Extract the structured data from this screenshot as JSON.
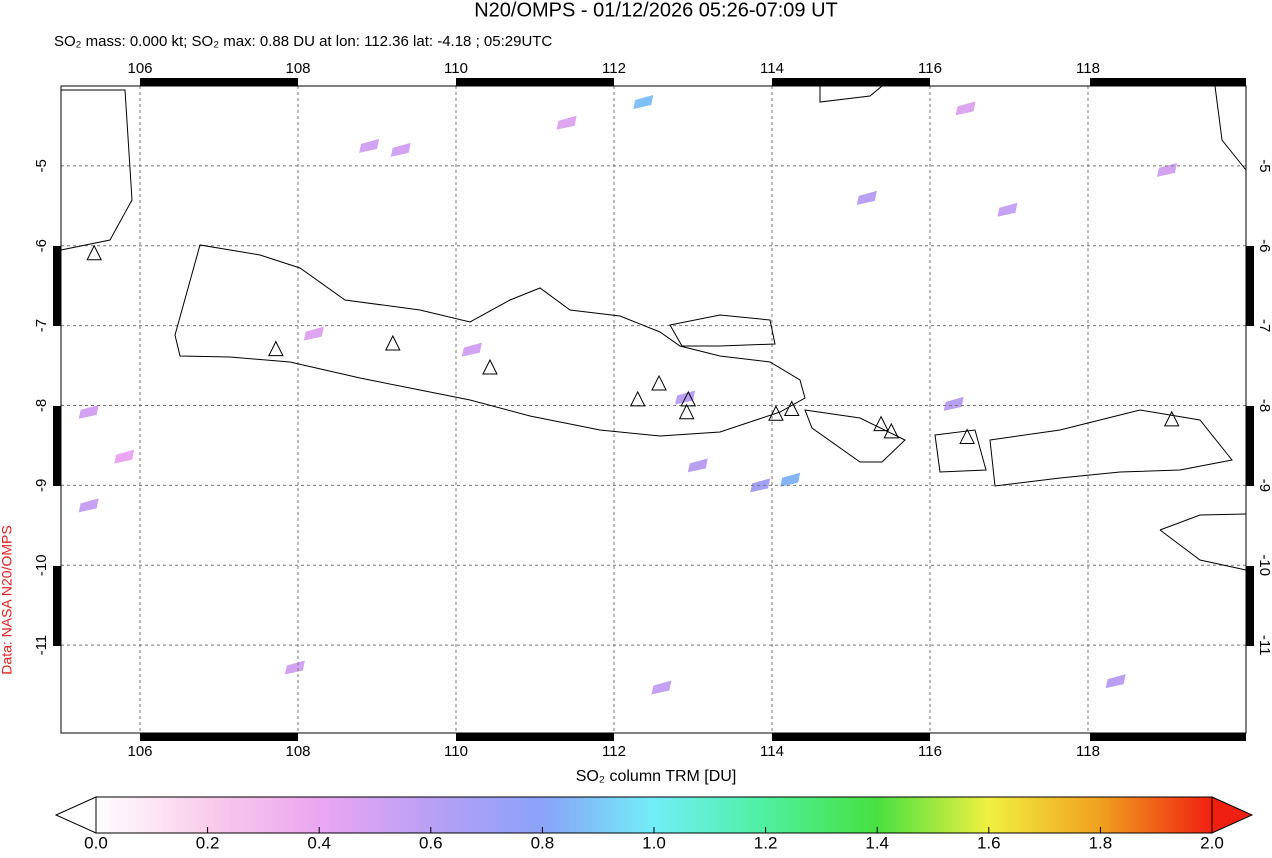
{
  "chart_data": {
    "type": "map",
    "title": "N20/OMPS - 01/12/2026 05:26-07:09 UT",
    "subtitle": "SO₂ mass: 0.000 kt; SO₂ max: 0.88 DU at lon: 112.36 lat: -4.18 ; 05:29UTC",
    "credit": "Data: NASA N20/OMPS",
    "colorbar_label": "SO₂ column TRM [DU]",
    "xlim": [
      105,
      120
    ],
    "ylim": [
      -12.1,
      -4
    ],
    "xticks": [
      106,
      108,
      110,
      112,
      114,
      116,
      118
    ],
    "yticks": [
      -5,
      -6,
      -7,
      -8,
      -9,
      -10,
      -11
    ],
    "grid": true,
    "colorbar_lim": [
      0,
      2
    ],
    "colorbar_ticks": [
      {
        "value": 0,
        "label": "0.0"
      },
      0.2,
      0.4,
      0.6,
      0.8,
      {
        "value": 1,
        "label": "1.0"
      },
      1.2,
      1.4,
      1.6,
      1.8,
      {
        "value": 2,
        "label": "2.0"
      }
    ],
    "colormap": [
      "#ffffff",
      "#f9cdea",
      "#eaa6f0",
      "#b9a0f4",
      "#8aa2f8",
      "#72eef8",
      "#4ef0a0",
      "#48e040",
      "#f0f040",
      "#f0a020",
      "#f02010"
    ],
    "cells": {
      "lon": [
        112.37,
        114.23,
        113.85,
        113.06,
        115.2,
        112.9,
        109.3,
        108.9,
        110.2,
        108.2,
        105.35,
        105.35,
        112.6,
        118.35,
        116.3,
        116.98,
        111.4,
        116.45,
        107.96,
        105.8,
        119.0
      ],
      "lat": [
        -4.2,
        -8.93,
        -9.0,
        -8.75,
        -5.4,
        -7.9,
        -4.8,
        -4.75,
        -7.3,
        -7.1,
        -8.08,
        -9.25,
        -11.53,
        -11.45,
        -7.98,
        -5.55,
        -4.46,
        -4.28,
        -11.28,
        -8.64,
        -5.05
      ],
      "values": [
        0.88,
        0.85,
        0.7,
        0.6,
        0.6,
        0.6,
        0.5,
        0.5,
        0.5,
        0.45,
        0.5,
        0.55,
        0.55,
        0.6,
        0.6,
        0.55,
        0.45,
        0.45,
        0.5,
        0.4,
        0.5
      ]
    },
    "volcanoes": {
      "lon": [
        105.42,
        107.72,
        109.2,
        110.43,
        112.3,
        112.57,
        112.94,
        112.92,
        114.05,
        114.25,
        115.38,
        115.51,
        116.47,
        119.06
      ],
      "lat": [
        -6.1,
        -7.3,
        -7.23,
        -7.53,
        -7.93,
        -7.73,
        -7.93,
        -8.09,
        -8.11,
        -8.05,
        -8.24,
        -8.33,
        -8.4,
        -8.18
      ]
    }
  }
}
